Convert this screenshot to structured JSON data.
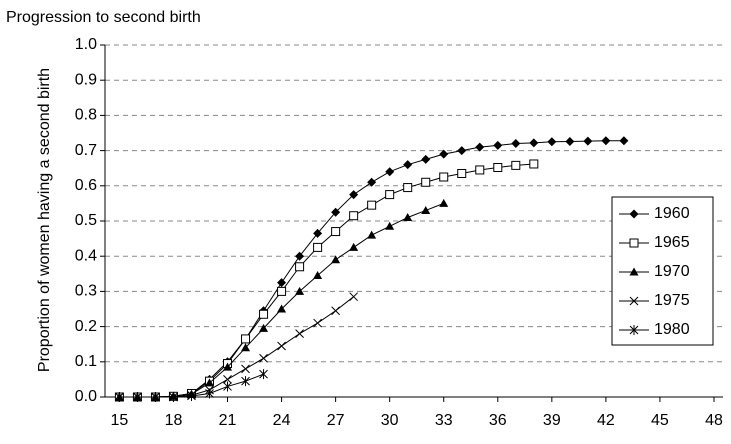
{
  "chart_data": {
    "type": "line",
    "title": "Progression to second birth",
    "y_label": "Proportion of women having a second birth",
    "x": [
      15,
      16,
      17,
      18,
      19,
      20,
      21,
      22,
      23,
      24,
      25,
      26,
      27,
      28,
      29,
      30,
      31,
      32,
      33,
      34,
      35,
      36,
      37,
      38,
      39,
      40,
      41,
      42,
      43
    ],
    "series": [
      {
        "name": "1960",
        "color": "#000000",
        "marker": "diamond",
        "values": [
          0,
          0,
          0,
          0.002,
          0.01,
          0.05,
          0.1,
          0.165,
          0.245,
          0.325,
          0.4,
          0.465,
          0.525,
          0.575,
          0.61,
          0.64,
          0.66,
          0.675,
          0.69,
          0.7,
          0.71,
          0.715,
          0.72,
          0.722,
          0.725,
          0.726,
          0.727,
          0.728,
          0.728
        ]
      },
      {
        "name": "1965",
        "color": "#000000",
        "marker": "square",
        "values": [
          0,
          0,
          0,
          0.002,
          0.01,
          0.045,
          0.095,
          0.165,
          0.235,
          0.3,
          0.37,
          0.425,
          0.47,
          0.515,
          0.545,
          0.575,
          0.595,
          0.61,
          0.625,
          0.635,
          0.645,
          0.652,
          0.658,
          0.662,
          null,
          null,
          null,
          null,
          null
        ]
      },
      {
        "name": "1970",
        "color": "#000000",
        "marker": "triangle",
        "values": [
          0,
          0,
          0,
          0.002,
          0.008,
          0.04,
          0.085,
          0.14,
          0.195,
          0.25,
          0.3,
          0.345,
          0.39,
          0.425,
          0.46,
          0.485,
          0.51,
          0.53,
          0.55,
          null,
          null,
          null,
          null,
          null,
          null,
          null,
          null,
          null,
          null
        ]
      },
      {
        "name": "1975",
        "color": "#000000",
        "marker": "x",
        "values": [
          0,
          0,
          0,
          0,
          0.005,
          0.02,
          0.05,
          0.08,
          0.11,
          0.145,
          0.18,
          0.21,
          0.245,
          0.285,
          null,
          null,
          null,
          null,
          null,
          null,
          null,
          null,
          null,
          null,
          null,
          null,
          null,
          null,
          null
        ]
      },
      {
        "name": "1980",
        "color": "#000000",
        "marker": "asterisk",
        "values": [
          0,
          0,
          0,
          0,
          0.003,
          0.01,
          0.03,
          0.045,
          0.065,
          null,
          null,
          null,
          null,
          null,
          null,
          null,
          null,
          null,
          null,
          null,
          null,
          null,
          null,
          null,
          null,
          null,
          null,
          null,
          null
        ]
      }
    ],
    "xlim": [
      14.2,
      48.5
    ],
    "xticks": [
      15,
      18,
      21,
      24,
      27,
      30,
      33,
      36,
      39,
      42,
      45,
      48
    ],
    "ylim": [
      0,
      1
    ],
    "yticks": [
      {
        "value": 0,
        "label": "0.0"
      },
      0.1,
      0.2,
      0.3,
      0.4,
      0.5,
      0.6,
      0.7,
      0.8,
      0.9,
      {
        "value": 1,
        "label": "1.0"
      }
    ],
    "grid": true,
    "legend": "right"
  }
}
